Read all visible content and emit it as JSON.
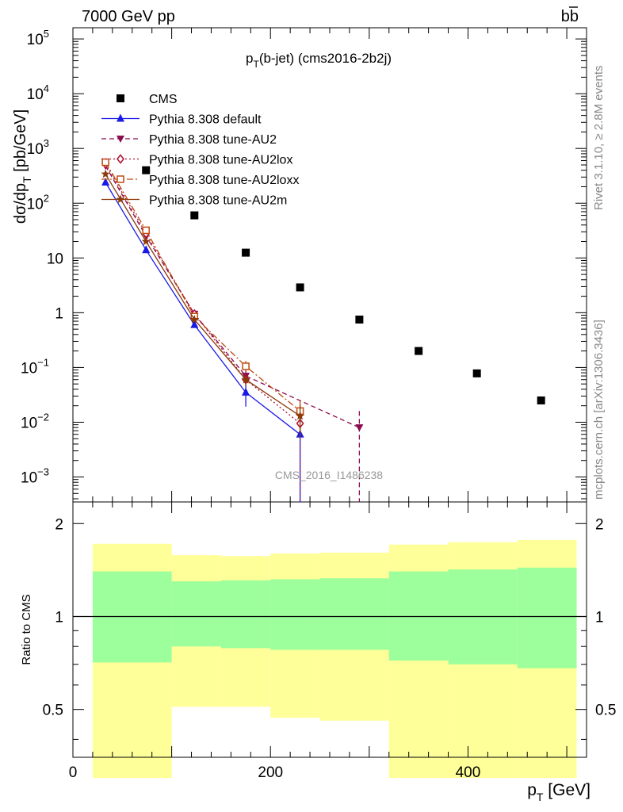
{
  "header": {
    "left": "7000 GeV pp",
    "right": "bb"
  },
  "title": {
    "main": "p",
    "sub": "T",
    "rest": "(b-jet) (cms2016-2b2j)"
  },
  "side": {
    "rivet": "Rivet 3.1.10, ≥ 2.8M events",
    "mcplots": "mcplots.cern.ch [arXiv:1306.3436]"
  },
  "watermark": "CMS_2016_I1486238",
  "axes": {
    "ylabel_main": {
      "a": "dσ/dp",
      "sub": "T",
      "b": " [pb/GeV]"
    },
    "ylabel_ratio": "Ratio to CMS",
    "xlabel": {
      "a": "p",
      "sub": "T",
      "b": " [GeV]"
    },
    "main_ticks": [
      {
        "v": 100000.0,
        "base": "10",
        "exp": "5"
      },
      {
        "v": 10000.0,
        "base": "10",
        "exp": "4"
      },
      {
        "v": 1000.0,
        "base": "10",
        "exp": "3"
      },
      {
        "v": 100.0,
        "base": "10",
        "exp": "2"
      },
      {
        "v": 10,
        "base": "10",
        "exp": ""
      },
      {
        "v": 1,
        "base": "1",
        "exp": ""
      },
      {
        "v": 0.1,
        "base": "10",
        "exp": "−1"
      },
      {
        "v": 0.01,
        "base": "10",
        "exp": "−2"
      },
      {
        "v": 0.001,
        "base": "10",
        "exp": "−3"
      }
    ],
    "ratio_ticks": [
      {
        "v": 2,
        "label": "2"
      },
      {
        "v": 1,
        "label": "1"
      },
      {
        "v": 0.5,
        "label": "0.5"
      }
    ],
    "x_ticks": [
      {
        "v": 0,
        "label": "0"
      },
      {
        "v": 200,
        "label": "200"
      },
      {
        "v": 400,
        "label": "400"
      }
    ]
  },
  "colors": {
    "data": "#000000",
    "default": "#1a1ae6",
    "au2": "#8b0a50",
    "au2lox": "#b01030",
    "au2loxx": "#c04a10",
    "au2m": "#8b3a0a",
    "band_inner": "#9cff9c",
    "band_outer": "#ffff99"
  },
  "chart_data": {
    "type": "scatter",
    "xlim": [
      0,
      520
    ],
    "ylim_main": [
      0.00035,
      160000
    ],
    "ylim_ratio": [
      0.35,
      2.35
    ],
    "log_y_main": true,
    "log_y_ratio": true,
    "legend_placement": "top-left",
    "bin_edges": [
      20,
      100,
      150,
      200,
      250,
      320,
      380,
      450,
      510
    ],
    "series": [
      {
        "name": "CMS",
        "key": "data",
        "style": "square",
        "x": [
          74,
          123,
          175,
          230,
          290,
          350,
          409,
          474
        ],
        "y": [
          400,
          60,
          12.5,
          2.9,
          0.75,
          0.2,
          0.078,
          0.025
        ]
      },
      {
        "name": "Pythia 8.308 default",
        "key": "default",
        "style": "tri-up",
        "dash": "",
        "x": [
          33,
          74,
          123,
          175,
          230
        ],
        "y": [
          240,
          14,
          0.6,
          0.035,
          0.006
        ],
        "err": [
          0.05,
          0.05,
          0.08,
          0.45,
          1.0
        ]
      },
      {
        "name": "Pythia 8.308 tune-AU2",
        "key": "au2",
        "style": "tri-down",
        "dash": "6,4",
        "x": [
          33,
          74,
          123,
          175,
          290
        ],
        "y": [
          480,
          25,
          0.95,
          0.07,
          0.008
        ],
        "err": [
          0.05,
          0.05,
          0.08,
          0.25,
          1.0
        ]
      },
      {
        "name": "Pythia 8.308 tune-AU2lox",
        "key": "au2lox",
        "style": "diamond",
        "dash": "2,3",
        "x": [
          33,
          74,
          123,
          175,
          230
        ],
        "y": [
          520,
          28,
          0.95,
          0.06,
          0.0095
        ],
        "err": [
          0.05,
          0.05,
          0.08,
          0.25,
          1.0
        ]
      },
      {
        "name": "Pythia 8.308 tune-AU2loxx",
        "key": "au2loxx",
        "style": "square-open",
        "dash": "8,3,2,3",
        "x": [
          33,
          74,
          123,
          175,
          230
        ],
        "y": [
          560,
          32,
          0.85,
          0.105,
          0.016
        ],
        "err": [
          0.05,
          0.05,
          0.08,
          0.25,
          0.6
        ]
      },
      {
        "name": "Pythia 8.308 tune-AU2m",
        "key": "au2m",
        "style": "star",
        "dash": "",
        "x": [
          33,
          74,
          123,
          175,
          230
        ],
        "y": [
          340,
          20,
          0.75,
          0.06,
          0.013
        ],
        "err": [
          0.05,
          0.05,
          0.08,
          0.25,
          0.6
        ]
      }
    ],
    "ratio_band_inner": [
      {
        "lo": 0.71,
        "hi": 1.4
      },
      {
        "lo": 0.8,
        "hi": 1.3
      },
      {
        "lo": 0.79,
        "hi": 1.31
      },
      {
        "lo": 0.78,
        "hi": 1.32
      },
      {
        "lo": 0.78,
        "hi": 1.33
      },
      {
        "lo": 0.72,
        "hi": 1.4
      },
      {
        "lo": 0.7,
        "hi": 1.42
      },
      {
        "lo": 0.68,
        "hi": 1.44
      }
    ],
    "ratio_band_outer": [
      {
        "lo": 0.3,
        "hi": 1.72
      },
      {
        "lo": 0.51,
        "hi": 1.58
      },
      {
        "lo": 0.51,
        "hi": 1.57
      },
      {
        "lo": 0.47,
        "hi": 1.6
      },
      {
        "lo": 0.46,
        "hi": 1.61
      },
      {
        "lo": 0.3,
        "hi": 1.71
      },
      {
        "lo": 0.3,
        "hi": 1.74
      },
      {
        "lo": 0.3,
        "hi": 1.77
      }
    ]
  }
}
